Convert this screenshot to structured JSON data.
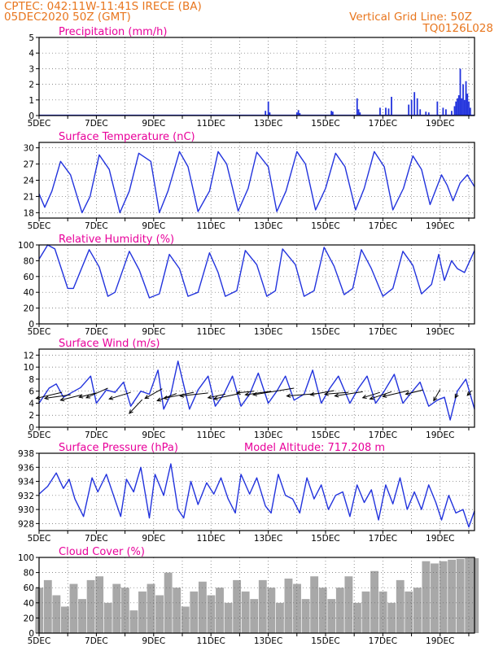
{
  "header": {
    "line1": "CPTEC:   042:11W-11:41S   IRECE (BA)",
    "line2": "05DEC2020 50Z (GMT)",
    "grid_note": "Vertical Grid Line: 50Z",
    "code": "TQ0126L028"
  },
  "colors": {
    "header": "#e8761e",
    "panel_title": "#e8009a",
    "series": "#2233dd",
    "cloud_fill": "#a8a8a8",
    "wind_arrow": "#000000"
  },
  "chart_data": [
    {
      "id": "precip",
      "type": "bar",
      "title": "Precipitation (mm/h)",
      "ylim": [
        0,
        5
      ],
      "yticks": [
        0,
        1,
        2,
        3,
        4,
        5
      ],
      "xlim_days": [
        5,
        20.2
      ],
      "xticks": [
        "5DEC",
        "7DEC",
        "9DEC",
        "11DEC",
        "13DEC",
        "15DEC",
        "17DEC",
        "19DEC"
      ],
      "grid": "dotted",
      "x": [
        12.9,
        13.0,
        13.05,
        14.0,
        14.05,
        14.1,
        15.2,
        15.25,
        16.1,
        16.15,
        16.2,
        16.9,
        17.1,
        17.2,
        17.3,
        17.9,
        18.0,
        18.1,
        18.2,
        18.3,
        18.5,
        18.6,
        18.9,
        19.1,
        19.2,
        19.4,
        19.5,
        19.55,
        19.6,
        19.65,
        19.7,
        19.75,
        19.8,
        19.85,
        19.9,
        19.95,
        20.0,
        20.05
      ],
      "y": [
        0.3,
        0.9,
        0.2,
        0.2,
        0.35,
        0.15,
        0.3,
        0.25,
        1.1,
        0.4,
        0.2,
        0.5,
        0.5,
        0.45,
        1.2,
        0.7,
        1.0,
        1.5,
        1.1,
        0.4,
        0.25,
        0.2,
        0.9,
        0.5,
        0.4,
        0.3,
        0.6,
        0.9,
        1.1,
        1.3,
        3.0,
        1.1,
        2.0,
        1.0,
        2.2,
        1.4,
        0.9,
        0.5
      ]
    },
    {
      "id": "temp",
      "type": "line",
      "title": "Surface Temperature (nC)",
      "ylim": [
        17,
        31
      ],
      "yticks": [
        18,
        21,
        24,
        27,
        30
      ],
      "xlim_days": [
        5,
        20.2
      ],
      "xticks": [
        "5DEC",
        "7DEC",
        "9DEC",
        "11DEC",
        "13DEC",
        "15DEC",
        "17DEC",
        "19DEC"
      ],
      "x": [
        5.0,
        5.2,
        5.45,
        5.75,
        6.1,
        6.5,
        6.78,
        7.1,
        7.45,
        7.82,
        8.15,
        8.48,
        8.9,
        9.2,
        9.5,
        9.9,
        10.2,
        10.55,
        10.95,
        11.25,
        11.55,
        11.95,
        12.3,
        12.6,
        13.0,
        13.3,
        13.62,
        14.0,
        14.3,
        14.65,
        15.0,
        15.35,
        15.68,
        16.05,
        16.35,
        16.7,
        17.05,
        17.35,
        17.72,
        18.05,
        18.35,
        18.65,
        19.05,
        19.25,
        19.45,
        19.7,
        19.95,
        20.2
      ],
      "y": [
        21.5,
        19.0,
        22.0,
        27.5,
        25.0,
        18.0,
        21.0,
        28.7,
        26.0,
        18.0,
        22.0,
        29.0,
        27.5,
        18.0,
        22.0,
        29.3,
        26.5,
        18.2,
        22.0,
        29.3,
        27.0,
        18.3,
        22.5,
        29.2,
        26.5,
        18.2,
        22.0,
        29.3,
        27.0,
        18.5,
        22.5,
        29.0,
        26.5,
        18.5,
        22.5,
        29.3,
        26.5,
        18.5,
        22.5,
        28.5,
        26.0,
        19.5,
        25.0,
        23.0,
        20.2,
        23.5,
        25.0,
        22.8
      ]
    },
    {
      "id": "rh",
      "type": "line",
      "title": "Relative Humidity (%)",
      "ylim": [
        0,
        100
      ],
      "yticks": [
        0,
        20,
        40,
        60,
        80,
        100
      ],
      "xlim_days": [
        5,
        20.2
      ],
      "xticks": [
        "5DEC",
        "7DEC",
        "9DEC",
        "11DEC",
        "13DEC",
        "15DEC",
        "17DEC",
        "19DEC"
      ],
      "x": [
        5.0,
        5.3,
        5.55,
        6.0,
        6.2,
        6.75,
        7.1,
        7.4,
        7.65,
        8.15,
        8.5,
        8.85,
        9.2,
        9.55,
        9.9,
        10.2,
        10.55,
        10.95,
        11.25,
        11.5,
        11.9,
        12.2,
        12.6,
        12.95,
        13.25,
        13.5,
        13.95,
        14.25,
        14.6,
        14.95,
        15.3,
        15.65,
        15.95,
        16.25,
        16.6,
        17.0,
        17.35,
        17.7,
        18.05,
        18.35,
        18.7,
        18.95,
        19.15,
        19.4,
        19.6,
        19.85,
        20.2
      ],
      "y": [
        82,
        100,
        95,
        45,
        45,
        94,
        72,
        35,
        40,
        92,
        68,
        33,
        38,
        88,
        70,
        35,
        40,
        90,
        65,
        35,
        42,
        93,
        75,
        35,
        42,
        95,
        75,
        35,
        42,
        97,
        73,
        37,
        45,
        94,
        70,
        35,
        45,
        92,
        74,
        38,
        50,
        88,
        55,
        80,
        70,
        65,
        93
      ]
    },
    {
      "id": "wind",
      "type": "line",
      "title": "Surface Wind (m/s)",
      "ylim": [
        0,
        13
      ],
      "yticks": [
        0,
        2,
        4,
        6,
        8,
        10,
        12
      ],
      "xlim_days": [
        5,
        20.2
      ],
      "xticks": [
        "5DEC",
        "7DEC",
        "9DEC",
        "11DEC",
        "13DEC",
        "15DEC",
        "17DEC",
        "19DEC"
      ],
      "x": [
        5.0,
        5.35,
        5.6,
        5.85,
        6.15,
        6.45,
        6.8,
        7.0,
        7.35,
        7.65,
        7.95,
        8.2,
        8.55,
        8.85,
        9.15,
        9.35,
        9.6,
        9.85,
        10.25,
        10.55,
        10.9,
        11.15,
        11.45,
        11.75,
        12.05,
        12.35,
        12.65,
        13.0,
        13.3,
        13.6,
        13.9,
        14.25,
        14.55,
        14.85,
        15.15,
        15.45,
        15.85,
        16.15,
        16.45,
        16.75,
        17.05,
        17.4,
        17.7,
        18.0,
        18.3,
        18.6,
        18.9,
        19.15,
        19.35,
        19.6,
        19.9,
        20.2
      ],
      "y": [
        4.0,
        6.5,
        7.2,
        5.0,
        5.8,
        6.6,
        8.5,
        4.0,
        6.2,
        5.8,
        7.5,
        3.5,
        6.0,
        5.5,
        9.5,
        3.0,
        5.5,
        11.0,
        3.0,
        6.2,
        8.5,
        3.5,
        5.5,
        8.5,
        3.5,
        5.5,
        9.0,
        4.0,
        6.0,
        8.5,
        4.5,
        5.5,
        9.5,
        4.0,
        6.5,
        8.5,
        4.0,
        6.5,
        8.5,
        4.0,
        6.0,
        8.8,
        4.0,
        5.8,
        7.5,
        3.5,
        4.5,
        5.0,
        1.2,
        6.0,
        8.0,
        3.0
      ],
      "arrows": [
        {
          "x": 5.8,
          "y": 5.8,
          "dx": -1.2,
          "dy": -1.0
        },
        {
          "x": 6.1,
          "y": 5.4,
          "dx": -1.2,
          "dy": -0.6
        },
        {
          "x": 6.5,
          "y": 5.4,
          "dx": -1.0,
          "dy": -0.9
        },
        {
          "x": 7.0,
          "y": 5.7,
          "dx": -0.8,
          "dy": -0.7
        },
        {
          "x": 7.4,
          "y": 6.5,
          "dx": -1.0,
          "dy": -1.6
        },
        {
          "x": 8.2,
          "y": 5.8,
          "dx": -1.0,
          "dy": -1.1
        },
        {
          "x": 8.6,
          "y": 4.6,
          "dx": -0.6,
          "dy": -2.3
        },
        {
          "x": 9.3,
          "y": 6.4,
          "dx": -0.8,
          "dy": -1.6
        },
        {
          "x": 9.8,
          "y": 5.6,
          "dx": -0.9,
          "dy": -1.2
        },
        {
          "x": 10.4,
          "y": 5.8,
          "dx": -1.4,
          "dy": -1.0
        },
        {
          "x": 10.9,
          "y": 5.7,
          "dx": -1.3,
          "dy": -0.5
        },
        {
          "x": 11.5,
          "y": 5.5,
          "dx": -0.8,
          "dy": -0.6
        },
        {
          "x": 12.0,
          "y": 5.6,
          "dx": -1.2,
          "dy": -0.9
        },
        {
          "x": 12.5,
          "y": 6.0,
          "dx": -0.8,
          "dy": -0.3
        },
        {
          "x": 13.1,
          "y": 6.0,
          "dx": -1.2,
          "dy": -0.6
        },
        {
          "x": 13.9,
          "y": 6.5,
          "dx": -1.9,
          "dy": -1.1
        },
        {
          "x": 14.7,
          "y": 5.6,
          "dx": -1.4,
          "dy": -0.4
        },
        {
          "x": 15.3,
          "y": 6.1,
          "dx": -1.1,
          "dy": -0.7
        },
        {
          "x": 15.8,
          "y": 5.8,
          "dx": -1.1,
          "dy": -0.3
        },
        {
          "x": 16.3,
          "y": 5.9,
          "dx": -1.3,
          "dy": -0.7
        },
        {
          "x": 16.9,
          "y": 5.8,
          "dx": -0.8,
          "dy": -0.9
        },
        {
          "x": 17.3,
          "y": 5.9,
          "dx": -1.0,
          "dy": -1.2
        },
        {
          "x": 17.9,
          "y": 6.1,
          "dx": -1.2,
          "dy": -1.0
        },
        {
          "x": 18.4,
          "y": 6.2,
          "dx": -0.8,
          "dy": -0.7
        },
        {
          "x": 19.0,
          "y": 6.3,
          "dx": -0.3,
          "dy": -1.9
        },
        {
          "x": 19.6,
          "y": 5.6,
          "dx": -0.1,
          "dy": -0.7
        },
        {
          "x": 20.1,
          "y": 6.1,
          "dx": -0.2,
          "dy": -0.8
        }
      ]
    },
    {
      "id": "pres",
      "type": "line",
      "title": "Surface Pressure (hPa)",
      "annotation": "Model Altitude: 717.208 m",
      "ylim": [
        927,
        938
      ],
      "yticks": [
        928,
        930,
        932,
        934,
        936,
        938
      ],
      "xlim_days": [
        5,
        20.2
      ],
      "xticks": [
        "5DEC",
        "7DEC",
        "9DEC",
        "11DEC",
        "13DEC",
        "15DEC",
        "17DEC",
        "19DEC"
      ],
      "x": [
        5.0,
        5.3,
        5.6,
        5.85,
        6.05,
        6.25,
        6.55,
        6.85,
        7.05,
        7.35,
        7.6,
        7.85,
        8.05,
        8.3,
        8.55,
        8.85,
        9.05,
        9.35,
        9.6,
        9.85,
        10.05,
        10.3,
        10.55,
        10.85,
        11.1,
        11.35,
        11.6,
        11.85,
        12.05,
        12.35,
        12.6,
        12.9,
        13.1,
        13.35,
        13.6,
        13.85,
        14.1,
        14.35,
        14.6,
        14.85,
        15.1,
        15.35,
        15.6,
        15.85,
        16.1,
        16.35,
        16.6,
        16.85,
        17.1,
        17.35,
        17.6,
        17.85,
        18.1,
        18.35,
        18.6,
        18.85,
        19.05,
        19.3,
        19.55,
        19.8,
        20.0,
        20.2
      ],
      "y": [
        932.2,
        933.3,
        935.2,
        933.0,
        934.3,
        931.5,
        929.0,
        934.5,
        932.5,
        935.0,
        932.0,
        929.0,
        934.3,
        932.5,
        936.0,
        928.8,
        935.0,
        932.0,
        936.5,
        930.0,
        928.8,
        934.0,
        930.7,
        933.8,
        932.2,
        934.5,
        931.5,
        929.5,
        935.0,
        932.2,
        934.5,
        930.5,
        929.5,
        935.0,
        932.0,
        931.5,
        929.5,
        934.5,
        931.5,
        933.5,
        930.0,
        932.0,
        932.5,
        929.0,
        933.5,
        931.0,
        932.8,
        928.5,
        933.5,
        930.8,
        934.5,
        930.0,
        932.5,
        930.0,
        933.5,
        931.0,
        928.5,
        932.0,
        929.5,
        930.0,
        927.5,
        929.8
      ]
    },
    {
      "id": "cloud",
      "type": "area",
      "title": "Cloud Cover (%)",
      "ylim": [
        0,
        100
      ],
      "yticks": [
        0,
        20,
        40,
        60,
        80,
        100
      ],
      "xlim_days": [
        5,
        20.2
      ],
      "xticks": [
        "5DEC",
        "7DEC",
        "9DEC",
        "11DEC",
        "13DEC",
        "15DEC",
        "17DEC",
        "19DEC"
      ],
      "x": [
        5.0,
        5.3,
        5.6,
        5.9,
        6.2,
        6.5,
        6.8,
        7.1,
        7.4,
        7.7,
        8.0,
        8.3,
        8.6,
        8.9,
        9.2,
        9.5,
        9.8,
        10.1,
        10.4,
        10.7,
        11.0,
        11.3,
        11.6,
        11.9,
        12.2,
        12.5,
        12.8,
        13.1,
        13.4,
        13.7,
        14.0,
        14.3,
        14.6,
        14.9,
        15.2,
        15.5,
        15.8,
        16.1,
        16.4,
        16.7,
        17.0,
        17.3,
        17.6,
        17.9,
        18.2,
        18.5,
        18.8,
        19.1,
        19.4,
        19.7,
        20.0,
        20.2
      ],
      "y": [
        60,
        70,
        50,
        35,
        65,
        45,
        70,
        75,
        40,
        65,
        60,
        30,
        55,
        65,
        50,
        80,
        60,
        35,
        55,
        68,
        50,
        60,
        40,
        70,
        55,
        45,
        70,
        60,
        40,
        72,
        65,
        45,
        75,
        60,
        45,
        60,
        75,
        40,
        55,
        82,
        55,
        40,
        70,
        55,
        60,
        95,
        92,
        95,
        97,
        98,
        99,
        99
      ]
    }
  ]
}
